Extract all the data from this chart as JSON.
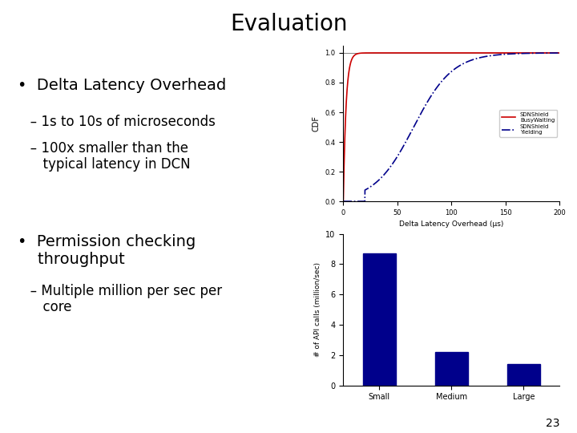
{
  "title": "Evaluation",
  "title_fontsize": 20,
  "background_color": "#ffffff",
  "bullet1_main": "•  Delta Latency Overhead",
  "bullet1_sub1": "   – 1s to 10s of microseconds",
  "bullet1_sub2": "   – 100x smaller than the\n      typical latency in DCN",
  "bullet2_main": "•  Permission checking\n    throughput",
  "bullet2_sub1": "   – Multiple million per sec per\n      core",
  "page_number": "23",
  "cdf_xlabel": "Delta Latency Overhead (μs)",
  "cdf_ylabel": "CDF",
  "cdf_xlim": [
    0,
    200
  ],
  "cdf_ylim": [
    0,
    1.05
  ],
  "cdf_yticks": [
    0,
    0.2,
    0.4,
    0.6,
    0.8,
    1
  ],
  "cdf_xticks": [
    0,
    50,
    100,
    150,
    200
  ],
  "line1_color": "#cc0000",
  "line1_style": "-",
  "line1_label": "SDNShield\nBusyWaiting",
  "line2_color": "#00008b",
  "line2_style": "-.",
  "line2_label": "SDNShield\nYielding",
  "bar_categories": [
    "Small",
    "Medium",
    "Large"
  ],
  "bar_values": [
    8.7,
    2.2,
    1.4
  ],
  "bar_color": "#00008b",
  "bar_ylabel": "# of API calls (million/sec)",
  "bar_ylim": [
    0,
    10
  ],
  "bar_yticks": [
    0,
    2,
    4,
    6,
    8,
    10
  ]
}
